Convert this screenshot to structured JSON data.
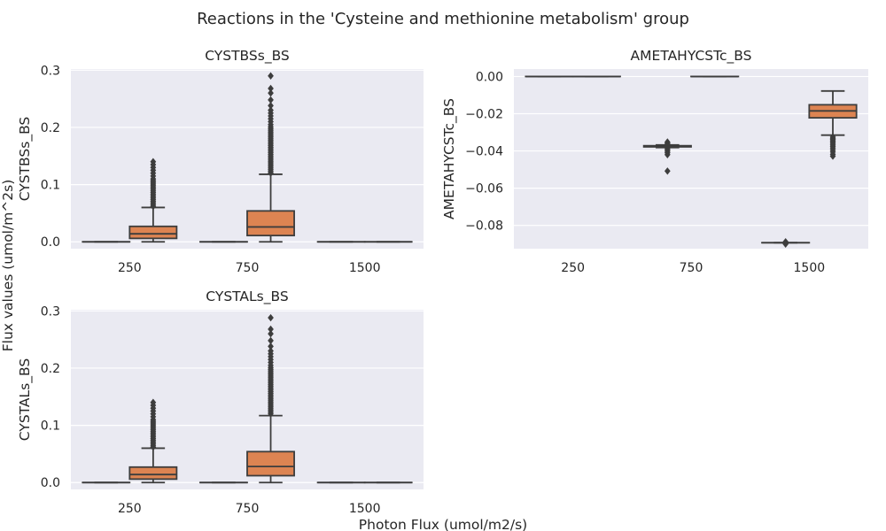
{
  "title": "Reactions in the 'Cysteine and methionine metabolism' group",
  "xlabel": "Photon Flux (umol/m2/s)",
  "ylabel": "Flux values (umol/m^2s)",
  "colors": {
    "plot_bg": "#eaeaf2",
    "grid": "#ffffff",
    "box_dark": "#7a8cae",
    "box_light": "#dd8452",
    "line": "#3d3d3d"
  },
  "chart_data": [
    {
      "type": "box",
      "title": "CYSTBSs_BS",
      "ylabel": "CYSTBSs_BS",
      "categories": [
        "250",
        "750",
        "1500"
      ],
      "ylim": [
        -0.012,
        0.302
      ],
      "yticks": [
        "0.0",
        "0.1",
        "0.2",
        "0.3"
      ],
      "ytick_values": [
        0.0,
        0.1,
        0.2,
        0.3
      ],
      "series": [
        {
          "group": "250",
          "slot": 0,
          "style": "dark",
          "q1": 0.0,
          "median": 0.0,
          "q3": 0.0,
          "whisker_low": 0.0,
          "whisker_high": 0.0,
          "outliers": []
        },
        {
          "group": "250",
          "slot": 1,
          "style": "light",
          "q1": 0.006,
          "median": 0.014,
          "q3": 0.027,
          "whisker_low": 0.0,
          "whisker_high": 0.06,
          "outliers": [
            0.062,
            0.065,
            0.068,
            0.071,
            0.074,
            0.077,
            0.08,
            0.083,
            0.086,
            0.089,
            0.092,
            0.095,
            0.098,
            0.101,
            0.104,
            0.107,
            0.11,
            0.115,
            0.12,
            0.125,
            0.13,
            0.135,
            0.14
          ]
        },
        {
          "group": "750",
          "slot": 0,
          "style": "dark",
          "q1": 0.0,
          "median": 0.0,
          "q3": 0.0,
          "whisker_low": 0.0,
          "whisker_high": 0.0,
          "outliers": []
        },
        {
          "group": "750",
          "slot": 1,
          "style": "light",
          "q1": 0.011,
          "median": 0.026,
          "q3": 0.054,
          "whisker_low": 0.0,
          "whisker_high": 0.118,
          "outliers": [
            0.12,
            0.123,
            0.126,
            0.129,
            0.132,
            0.135,
            0.138,
            0.141,
            0.144,
            0.147,
            0.15,
            0.153,
            0.156,
            0.159,
            0.162,
            0.165,
            0.168,
            0.171,
            0.174,
            0.177,
            0.18,
            0.183,
            0.186,
            0.189,
            0.192,
            0.195,
            0.198,
            0.201,
            0.205,
            0.21,
            0.215,
            0.22,
            0.225,
            0.23,
            0.238,
            0.248,
            0.26,
            0.268,
            0.29
          ]
        },
        {
          "group": "1500",
          "slot": 0,
          "style": "dark",
          "q1": 0.0,
          "median": 0.0,
          "q3": 0.0,
          "whisker_low": 0.0,
          "whisker_high": 0.0,
          "outliers": []
        },
        {
          "group": "1500",
          "slot": 1,
          "style": "light",
          "q1": 0.0,
          "median": 0.0,
          "q3": 0.0,
          "whisker_low": 0.0,
          "whisker_high": 0.0,
          "outliers": []
        }
      ]
    },
    {
      "type": "box",
      "title": "AMETAHYCSTc_BS",
      "ylabel": "AMETAHYCSTc_BS",
      "categories": [
        "250",
        "750",
        "1500"
      ],
      "ylim": [
        -0.0925,
        0.004
      ],
      "yticks": [
        "0.00",
        "−0.02",
        "−0.04",
        "−0.06",
        "−0.08"
      ],
      "ytick_values": [
        0.0,
        -0.02,
        -0.04,
        -0.06,
        -0.08
      ],
      "series": [
        {
          "group": "250",
          "slot": 0,
          "style": "dark",
          "q1": 0.0,
          "median": 0.0,
          "q3": 0.0,
          "whisker_low": 0.0,
          "whisker_high": 0.0,
          "outliers": []
        },
        {
          "group": "250",
          "slot": 1,
          "style": "light",
          "q1": 0.0,
          "median": 0.0,
          "q3": 0.0,
          "whisker_low": 0.0,
          "whisker_high": 0.0,
          "outliers": []
        },
        {
          "group": "750",
          "slot": 0,
          "style": "dark",
          "q1": -0.0378,
          "median": -0.0375,
          "q3": -0.0372,
          "whisker_low": -0.0382,
          "whisker_high": -0.0368,
          "outliers": [
            -0.0352,
            -0.0358,
            -0.0363,
            -0.0388,
            -0.0395,
            -0.0402,
            -0.041,
            -0.042,
            -0.0508
          ]
        },
        {
          "group": "750",
          "slot": 1,
          "style": "light",
          "q1": 0.0,
          "median": 0.0,
          "q3": 0.0,
          "whisker_low": 0.0,
          "whisker_high": 0.0,
          "outliers": []
        },
        {
          "group": "1500",
          "slot": 0,
          "style": "dark",
          "q1": -0.0893,
          "median": -0.0893,
          "q3": -0.0893,
          "whisker_low": -0.0893,
          "whisker_high": -0.0893,
          "outliers": [
            -0.0888,
            -0.0897,
            -0.09
          ]
        },
        {
          "group": "1500",
          "slot": 1,
          "style": "light",
          "q1": -0.0222,
          "median": -0.0185,
          "q3": -0.0152,
          "whisker_low": -0.0315,
          "whisker_high": -0.0078,
          "outliers": [
            -0.0325,
            -0.0332,
            -0.0338,
            -0.0345,
            -0.0352,
            -0.036,
            -0.0368,
            -0.0376,
            -0.0385,
            -0.0395,
            -0.0405,
            -0.0418,
            -0.0428
          ]
        }
      ]
    },
    {
      "type": "box",
      "title": "CYSTALs_BS",
      "ylabel": "CYSTALs_BS",
      "categories": [
        "250",
        "750",
        "1500"
      ],
      "ylim": [
        -0.012,
        0.302
      ],
      "yticks": [
        "0.0",
        "0.1",
        "0.2",
        "0.3"
      ],
      "ytick_values": [
        0.0,
        0.1,
        0.2,
        0.3
      ],
      "series": [
        {
          "group": "250",
          "slot": 0,
          "style": "dark",
          "q1": 0.0,
          "median": 0.0,
          "q3": 0.0,
          "whisker_low": 0.0,
          "whisker_high": 0.0,
          "outliers": []
        },
        {
          "group": "250",
          "slot": 1,
          "style": "light",
          "q1": 0.006,
          "median": 0.014,
          "q3": 0.027,
          "whisker_low": 0.0,
          "whisker_high": 0.06,
          "outliers": [
            0.062,
            0.065,
            0.068,
            0.071,
            0.074,
            0.077,
            0.08,
            0.083,
            0.086,
            0.089,
            0.092,
            0.095,
            0.098,
            0.101,
            0.104,
            0.107,
            0.11,
            0.115,
            0.12,
            0.125,
            0.13,
            0.135,
            0.14
          ]
        },
        {
          "group": "750",
          "slot": 0,
          "style": "dark",
          "q1": 0.0,
          "median": 0.0,
          "q3": 0.0,
          "whisker_low": 0.0,
          "whisker_high": 0.0,
          "outliers": []
        },
        {
          "group": "750",
          "slot": 1,
          "style": "light",
          "q1": 0.012,
          "median": 0.028,
          "q3": 0.054,
          "whisker_low": 0.0,
          "whisker_high": 0.117,
          "outliers": [
            0.12,
            0.123,
            0.126,
            0.129,
            0.132,
            0.135,
            0.138,
            0.141,
            0.144,
            0.147,
            0.15,
            0.153,
            0.156,
            0.159,
            0.162,
            0.165,
            0.168,
            0.171,
            0.174,
            0.177,
            0.18,
            0.183,
            0.186,
            0.189,
            0.192,
            0.195,
            0.198,
            0.201,
            0.205,
            0.21,
            0.215,
            0.22,
            0.225,
            0.23,
            0.238,
            0.248,
            0.26,
            0.268,
            0.288
          ]
        },
        {
          "group": "1500",
          "slot": 0,
          "style": "dark",
          "q1": 0.0,
          "median": 0.0,
          "q3": 0.0,
          "whisker_low": 0.0,
          "whisker_high": 0.0,
          "outliers": []
        },
        {
          "group": "1500",
          "slot": 1,
          "style": "light",
          "q1": 0.0,
          "median": 0.0,
          "q3": 0.0,
          "whisker_low": 0.0,
          "whisker_high": 0.0,
          "outliers": []
        }
      ]
    }
  ]
}
